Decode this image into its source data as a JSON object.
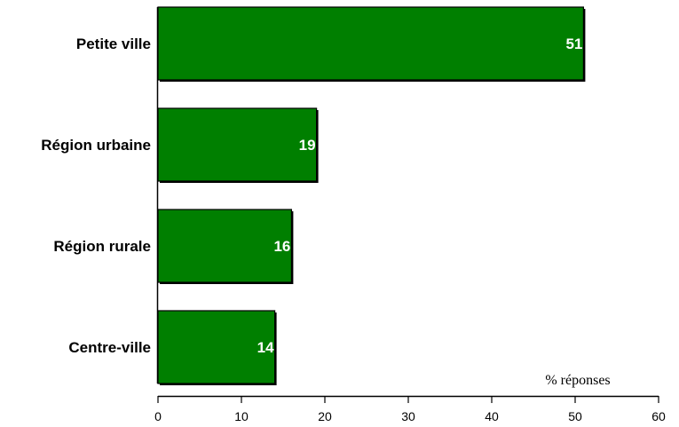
{
  "chart_data": {
    "type": "bar",
    "orientation": "horizontal",
    "categories": [
      "Petite ville",
      "Région urbaine",
      "Région rurale",
      "Centre-ville"
    ],
    "values": [
      51,
      19,
      16,
      14
    ],
    "data_labels": [
      "51",
      "19",
      "16",
      "14"
    ],
    "xlabel": "% réponses",
    "xlim": [
      0,
      60
    ],
    "xticks": [
      "0",
      "10",
      "20",
      "30",
      "40",
      "50",
      "60"
    ],
    "grid": false,
    "legend": "none",
    "colors": {
      "bar": "#007f00",
      "bar_shadow": "#000000",
      "label": "#ffffff"
    }
  }
}
